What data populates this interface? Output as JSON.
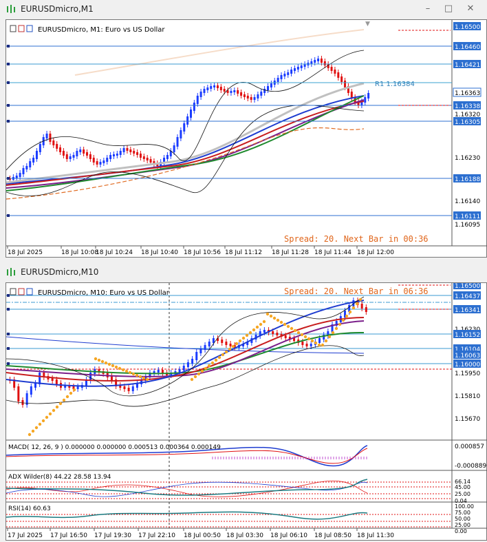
{
  "top_window": {
    "title": "EURUSDmicro,M1",
    "chart_label": "EURUSDmicro, M1:  Euro vs US Dollar",
    "spread_text": "Spread: 20. Next Bar in 00:36",
    "r1_label": "R1 1.16384",
    "price_labels": [
      "1.16500",
      "1.16460",
      "1.16421",
      "1.16363",
      "1.16338",
      "1.16320",
      "1.16305",
      "1.16230",
      "1.16188",
      "1.16140",
      "1.16111",
      "1.16095"
    ],
    "time_labels": [
      "18 Jul 2025",
      "18 Jul 10:08",
      "18 Jul 10:24",
      "18 Jul 10:40",
      "18 Jul 10:56",
      "18 Jul 11:12",
      "18 Jul 11:28",
      "18 Jul 11:44",
      "18 Jul 12:00"
    ]
  },
  "bottom_window": {
    "title": "EURUSDmicro,M10",
    "chart_label": "EURUSDmicro, M10:  Euro vs US Dollar",
    "spread_text": "Spread: 20. Next Bar in 06:36",
    "price_labels": [
      "1.16500",
      "1.16437",
      "1.16341",
      "1.16230",
      "1.16152",
      "1.16104",
      "1.16063",
      "1.16000",
      "1.15950",
      "1.15810",
      "1.15670"
    ],
    "macd_label": "MACD( 12, 26, 9 ) 0.000000 0.000000 0.000513 0.000364 0.000149",
    "macd_scale": [
      "0.000857",
      "-0.000889"
    ],
    "adx_label": "ADX Wilder(8) 44.22 28.58 13.94",
    "adx_scale": [
      "66.14",
      "45.00",
      "25.00",
      "0.04"
    ],
    "rsi_label": "RSI(14) 60.63",
    "rsi_scale": [
      "100.00",
      "75.00",
      "50.00",
      "25.00",
      "0.00"
    ],
    "time_labels": [
      "17 Jul 2025",
      "17 Jul 16:50",
      "17 Jul 19:30",
      "17 Jul 22:10",
      "18 Jul 00:50",
      "18 Jul 03:30",
      "18 Jul 06:10",
      "18 Jul 08:50",
      "18 Jul 11:30"
    ]
  },
  "colors": {
    "bull": "#1a3cff",
    "bear": "#e01010",
    "accent": "#2c7fb8"
  }
}
